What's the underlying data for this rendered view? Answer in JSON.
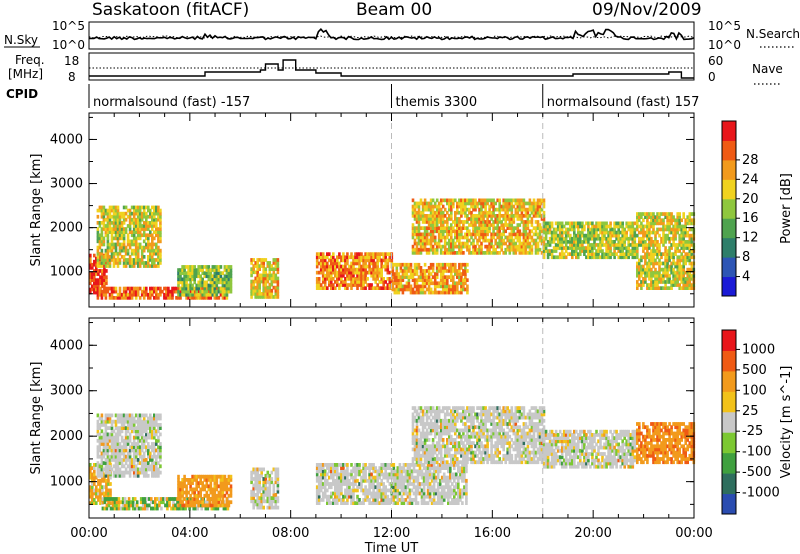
{
  "header": {
    "station": "Saskatoon (fitACF)",
    "beam": "Beam 00",
    "date": "09/Nov/2009"
  },
  "noise_panel": {
    "left_label": "N.Sky",
    "left_tick_top": "10^5",
    "left_tick_bottom": "10^0",
    "right_tick_top": "10^5",
    "right_tick_bottom": "10^0",
    "right_label": "N.Search"
  },
  "freq_panel": {
    "left_label_line1": "Freq.",
    "left_label_line2": "[MHz]",
    "left_tick_top": "18",
    "left_tick_bottom": "8",
    "right_tick_top": "60",
    "right_tick_bottom": "0",
    "right_label": "Nave"
  },
  "cpid": {
    "label": "CPID",
    "segments": [
      {
        "text": "normalsound (fast) -157",
        "start_hour": 0
      },
      {
        "text": "themis 3300",
        "start_hour": 12
      },
      {
        "text": "normalsound (fast) 157",
        "start_hour": 18
      }
    ]
  },
  "colors": {
    "power_scale": [
      "#1b1bd6",
      "#2d55b5",
      "#2e7e6a",
      "#4fa34f",
      "#8fc73e",
      "#f0d21f",
      "#f29a1c",
      "#ef5a14",
      "#e8161b"
    ],
    "velocity_scale": [
      "#e8161b",
      "#ef5a14",
      "#f29a1c",
      "#f2c21a",
      "#c8c8c8",
      "#7cc832",
      "#3fa03f",
      "#2e6e5e",
      "#2a4cb0"
    ],
    "ground_scatter": "#c0c0c0"
  },
  "chart_data": [
    {
      "type": "heatmap",
      "title": "",
      "xlabel": "Time UT",
      "ylabel": "Slant Range [km]",
      "xlim": [
        0,
        24
      ],
      "ylim": [
        200,
        4600
      ],
      "x_ticks": [
        "00:00",
        "04:00",
        "08:00",
        "12:00",
        "16:00",
        "20:00",
        "00:00"
      ],
      "y_ticks": [
        "1000",
        "2000",
        "3000",
        "4000"
      ],
      "colorbar": {
        "label": "Power [dB]",
        "ticks": [
          "4",
          "8",
          "12",
          "16",
          "20",
          "24",
          "28"
        ],
        "range": [
          0,
          30
        ]
      },
      "features": [
        {
          "t": [
            0.0,
            0.7
          ],
          "range": [
            500,
            1400
          ],
          "value": 28
        },
        {
          "t": [
            0.3,
            2.8
          ],
          "range": [
            1100,
            2500
          ],
          "value": 18
        },
        {
          "t": [
            0.3,
            5.5
          ],
          "range": [
            380,
            650
          ],
          "value": 26
        },
        {
          "t": [
            3.5,
            5.6
          ],
          "range": [
            450,
            1100
          ],
          "value": 14
        },
        {
          "t": [
            6.4,
            7.5
          ],
          "range": [
            400,
            1300
          ],
          "value": 20
        },
        {
          "t": [
            9.0,
            12.0
          ],
          "range": [
            600,
            1400
          ],
          "value": 24
        },
        {
          "t": [
            12.0,
            15.0
          ],
          "range": [
            500,
            1200
          ],
          "value": 22
        },
        {
          "t": [
            12.8,
            18.0
          ],
          "range": [
            1400,
            2600
          ],
          "value": 20
        },
        {
          "t": [
            18.0,
            21.6
          ],
          "range": [
            1300,
            2100
          ],
          "value": 16
        },
        {
          "t": [
            21.7,
            24.0
          ],
          "range": [
            600,
            2300
          ],
          "value": 18
        }
      ]
    },
    {
      "type": "heatmap",
      "title": "",
      "xlabel": "Time UT",
      "ylabel": "Slant Range [km]",
      "xlim": [
        0,
        24
      ],
      "ylim": [
        200,
        4600
      ],
      "x_ticks": [
        "00:00",
        "04:00",
        "08:00",
        "12:00",
        "16:00",
        "20:00",
        "00:00"
      ],
      "y_ticks": [
        "1000",
        "2000",
        "3000",
        "4000"
      ],
      "colorbar": {
        "label": "Velocity [m s^-1]",
        "ticks": [
          "1000",
          "500",
          "100",
          "25",
          "-25",
          "-100",
          "-500",
          "-1000"
        ],
        "range": [
          -1000,
          1000
        ]
      },
      "features": [
        {
          "t": [
            0.0,
            0.8
          ],
          "range": [
            500,
            1400
          ],
          "value": -150
        },
        {
          "t": [
            0.3,
            2.8
          ],
          "range": [
            1100,
            2500
          ],
          "value": 0
        },
        {
          "t": [
            0.5,
            5.5
          ],
          "range": [
            380,
            650
          ],
          "value": 60
        },
        {
          "t": [
            3.5,
            5.6
          ],
          "range": [
            450,
            1100
          ],
          "value": -300
        },
        {
          "t": [
            6.4,
            7.5
          ],
          "range": [
            400,
            1300
          ],
          "value": 0
        },
        {
          "t": [
            9.0,
            15.0
          ],
          "range": [
            500,
            1400
          ],
          "value": 0
        },
        {
          "t": [
            12.8,
            18.0
          ],
          "range": [
            1400,
            2600
          ],
          "value": 0
        },
        {
          "t": [
            18.0,
            21.6
          ],
          "range": [
            1300,
            2100
          ],
          "value": 0
        },
        {
          "t": [
            21.7,
            24.0
          ],
          "range": [
            1400,
            2300
          ],
          "value": -400
        }
      ]
    }
  ]
}
